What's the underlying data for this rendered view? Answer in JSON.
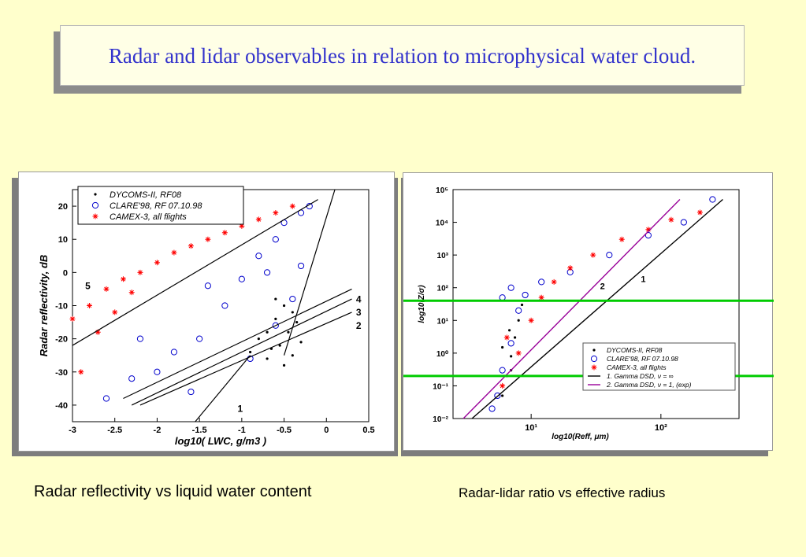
{
  "slide": {
    "title": "Radar and lidar observables in relation to microphysical water cloud.",
    "caption_left": "Radar reflectivity vs liquid water content",
    "caption_right": "Radar-lidar ratio vs effective radius"
  },
  "chart_data": [
    {
      "type": "scatter",
      "title": "",
      "xlabel": "log10( LWC, g/m3 )",
      "ylabel": "Radar reflectivity, dB",
      "xlim": [
        -3,
        0.5
      ],
      "ylim": [
        -45,
        25
      ],
      "x_ticks": [
        "-3",
        "-2.5",
        "-2",
        "-1.5",
        "-1",
        "-0.5",
        "0",
        "0.5"
      ],
      "y_ticks": [
        "-40",
        "-30",
        "-20",
        "-10",
        "0",
        "10",
        "20"
      ],
      "legend_position": "top-left",
      "series": [
        {
          "name": "DYCOMS-II, RF08",
          "marker": "dot",
          "color": "#000000",
          "points": [
            [
              -0.9,
              -24
            ],
            [
              -0.8,
              -20
            ],
            [
              -0.7,
              -26
            ],
            [
              -0.6,
              -14
            ],
            [
              -0.55,
              -22
            ],
            [
              -0.5,
              -10
            ],
            [
              -0.45,
              -18
            ],
            [
              -0.4,
              -25
            ],
            [
              -0.35,
              -15
            ],
            [
              -0.3,
              -21
            ],
            [
              -0.6,
              -8
            ],
            [
              -0.5,
              -28
            ],
            [
              -0.4,
              -12
            ],
            [
              -0.7,
              -18
            ],
            [
              -0.65,
              -23
            ]
          ]
        },
        {
          "name": "CLARE'98, RF 07.10.98",
          "marker": "circle",
          "color": "#0000cc",
          "points": [
            [
              -2.6,
              -38
            ],
            [
              -2.3,
              -32
            ],
            [
              -2,
              -30
            ],
            [
              -1.8,
              -24
            ],
            [
              -1.5,
              -20
            ],
            [
              -1.2,
              -10
            ],
            [
              -1,
              -2
            ],
            [
              -0.8,
              5
            ],
            [
              -0.6,
              10
            ],
            [
              -0.5,
              15
            ],
            [
              -0.3,
              18
            ],
            [
              -0.2,
              20
            ],
            [
              -0.9,
              -26
            ],
            [
              -0.6,
              -16
            ],
            [
              -0.4,
              -8
            ],
            [
              -0.3,
              2
            ],
            [
              -1.6,
              -36
            ],
            [
              -2.2,
              -20
            ],
            [
              -1.4,
              -4
            ],
            [
              -0.7,
              0
            ]
          ]
        },
        {
          "name": "CAMEX-3, all flights",
          "marker": "star",
          "color": "#ff0000",
          "points": [
            [
              -3,
              -14
            ],
            [
              -2.8,
              -10
            ],
            [
              -2.6,
              -5
            ],
            [
              -2.4,
              -2
            ],
            [
              -2.2,
              0
            ],
            [
              -2,
              3
            ],
            [
              -1.8,
              6
            ],
            [
              -1.6,
              8
            ],
            [
              -1.4,
              10
            ],
            [
              -1.2,
              12
            ],
            [
              -1,
              14
            ],
            [
              -0.8,
              16
            ],
            [
              -0.6,
              18
            ],
            [
              -0.4,
              20
            ],
            [
              -2.9,
              -30
            ],
            [
              -2.7,
              -18
            ],
            [
              -2.5,
              -12
            ],
            [
              -2.3,
              -6
            ]
          ]
        }
      ],
      "annotations": [
        "1",
        "2",
        "3",
        "4",
        "5"
      ]
    },
    {
      "type": "scatter",
      "title": "",
      "xlabel": "log10(Reff, μm)",
      "ylabel": "log10(Z/σ)",
      "xscale": "log",
      "yscale": "log",
      "xlim": [
        2.5,
        400
      ],
      "ylim": [
        0.01,
        100000
      ],
      "x_ticks": [
        "10¹",
        "10²"
      ],
      "y_ticks": [
        "10⁻²",
        "10⁻¹",
        "10⁰",
        "10¹",
        "10²",
        "10³",
        "10⁴",
        "10⁵"
      ],
      "legend_position": "bottom-right",
      "series": [
        {
          "name": "DYCOMS-II, RF08",
          "marker": "dot",
          "color": "#000000",
          "points": [
            [
              6,
              0.05
            ],
            [
              6.5,
              0.2
            ],
            [
              7,
              0.8
            ],
            [
              7.5,
              3
            ],
            [
              8,
              10
            ],
            [
              7,
              0.3
            ],
            [
              6,
              1.5
            ],
            [
              8.5,
              30
            ],
            [
              6.8,
              5
            ]
          ]
        },
        {
          "name": "CLARE'98, RF 07.10.98",
          "marker": "circle",
          "color": "#0000cc",
          "points": [
            [
              5,
              0.02
            ],
            [
              5.5,
              0.05
            ],
            [
              6,
              0.3
            ],
            [
              7,
              2
            ],
            [
              8,
              20
            ],
            [
              9,
              60
            ],
            [
              12,
              150
            ],
            [
              20,
              300
            ],
            [
              40,
              1000
            ],
            [
              80,
              4000
            ],
            [
              150,
              10000
            ],
            [
              250,
              50000
            ],
            [
              6,
              50
            ],
            [
              7,
              100
            ]
          ]
        },
        {
          "name": "CAMEX-3, all flights",
          "marker": "star",
          "color": "#ff0000",
          "points": [
            [
              6,
              0.1
            ],
            [
              8,
              1
            ],
            [
              10,
              10
            ],
            [
              12,
              50
            ],
            [
              15,
              150
            ],
            [
              20,
              400
            ],
            [
              30,
              1000
            ],
            [
              50,
              3000
            ],
            [
              80,
              6000
            ],
            [
              120,
              12000
            ],
            [
              200,
              20000
            ],
            [
              6.5,
              3
            ]
          ]
        },
        {
          "name": "1. Gamma DSD, ν = ∞",
          "type": "line",
          "color": "#000000",
          "points": [
            [
              3.5,
              0.01
            ],
            [
              300,
              50000
            ]
          ]
        },
        {
          "name": "2. Gamma DSD, ν = 1, (exp)",
          "type": "line",
          "color": "#990099",
          "points": [
            [
              3,
              0.01
            ],
            [
              140,
              50000
            ]
          ]
        }
      ],
      "horizontal_lines": [
        40,
        0.2
      ],
      "horizontal_line_color": "#00cc00",
      "annotations": [
        "1",
        "2"
      ]
    }
  ]
}
